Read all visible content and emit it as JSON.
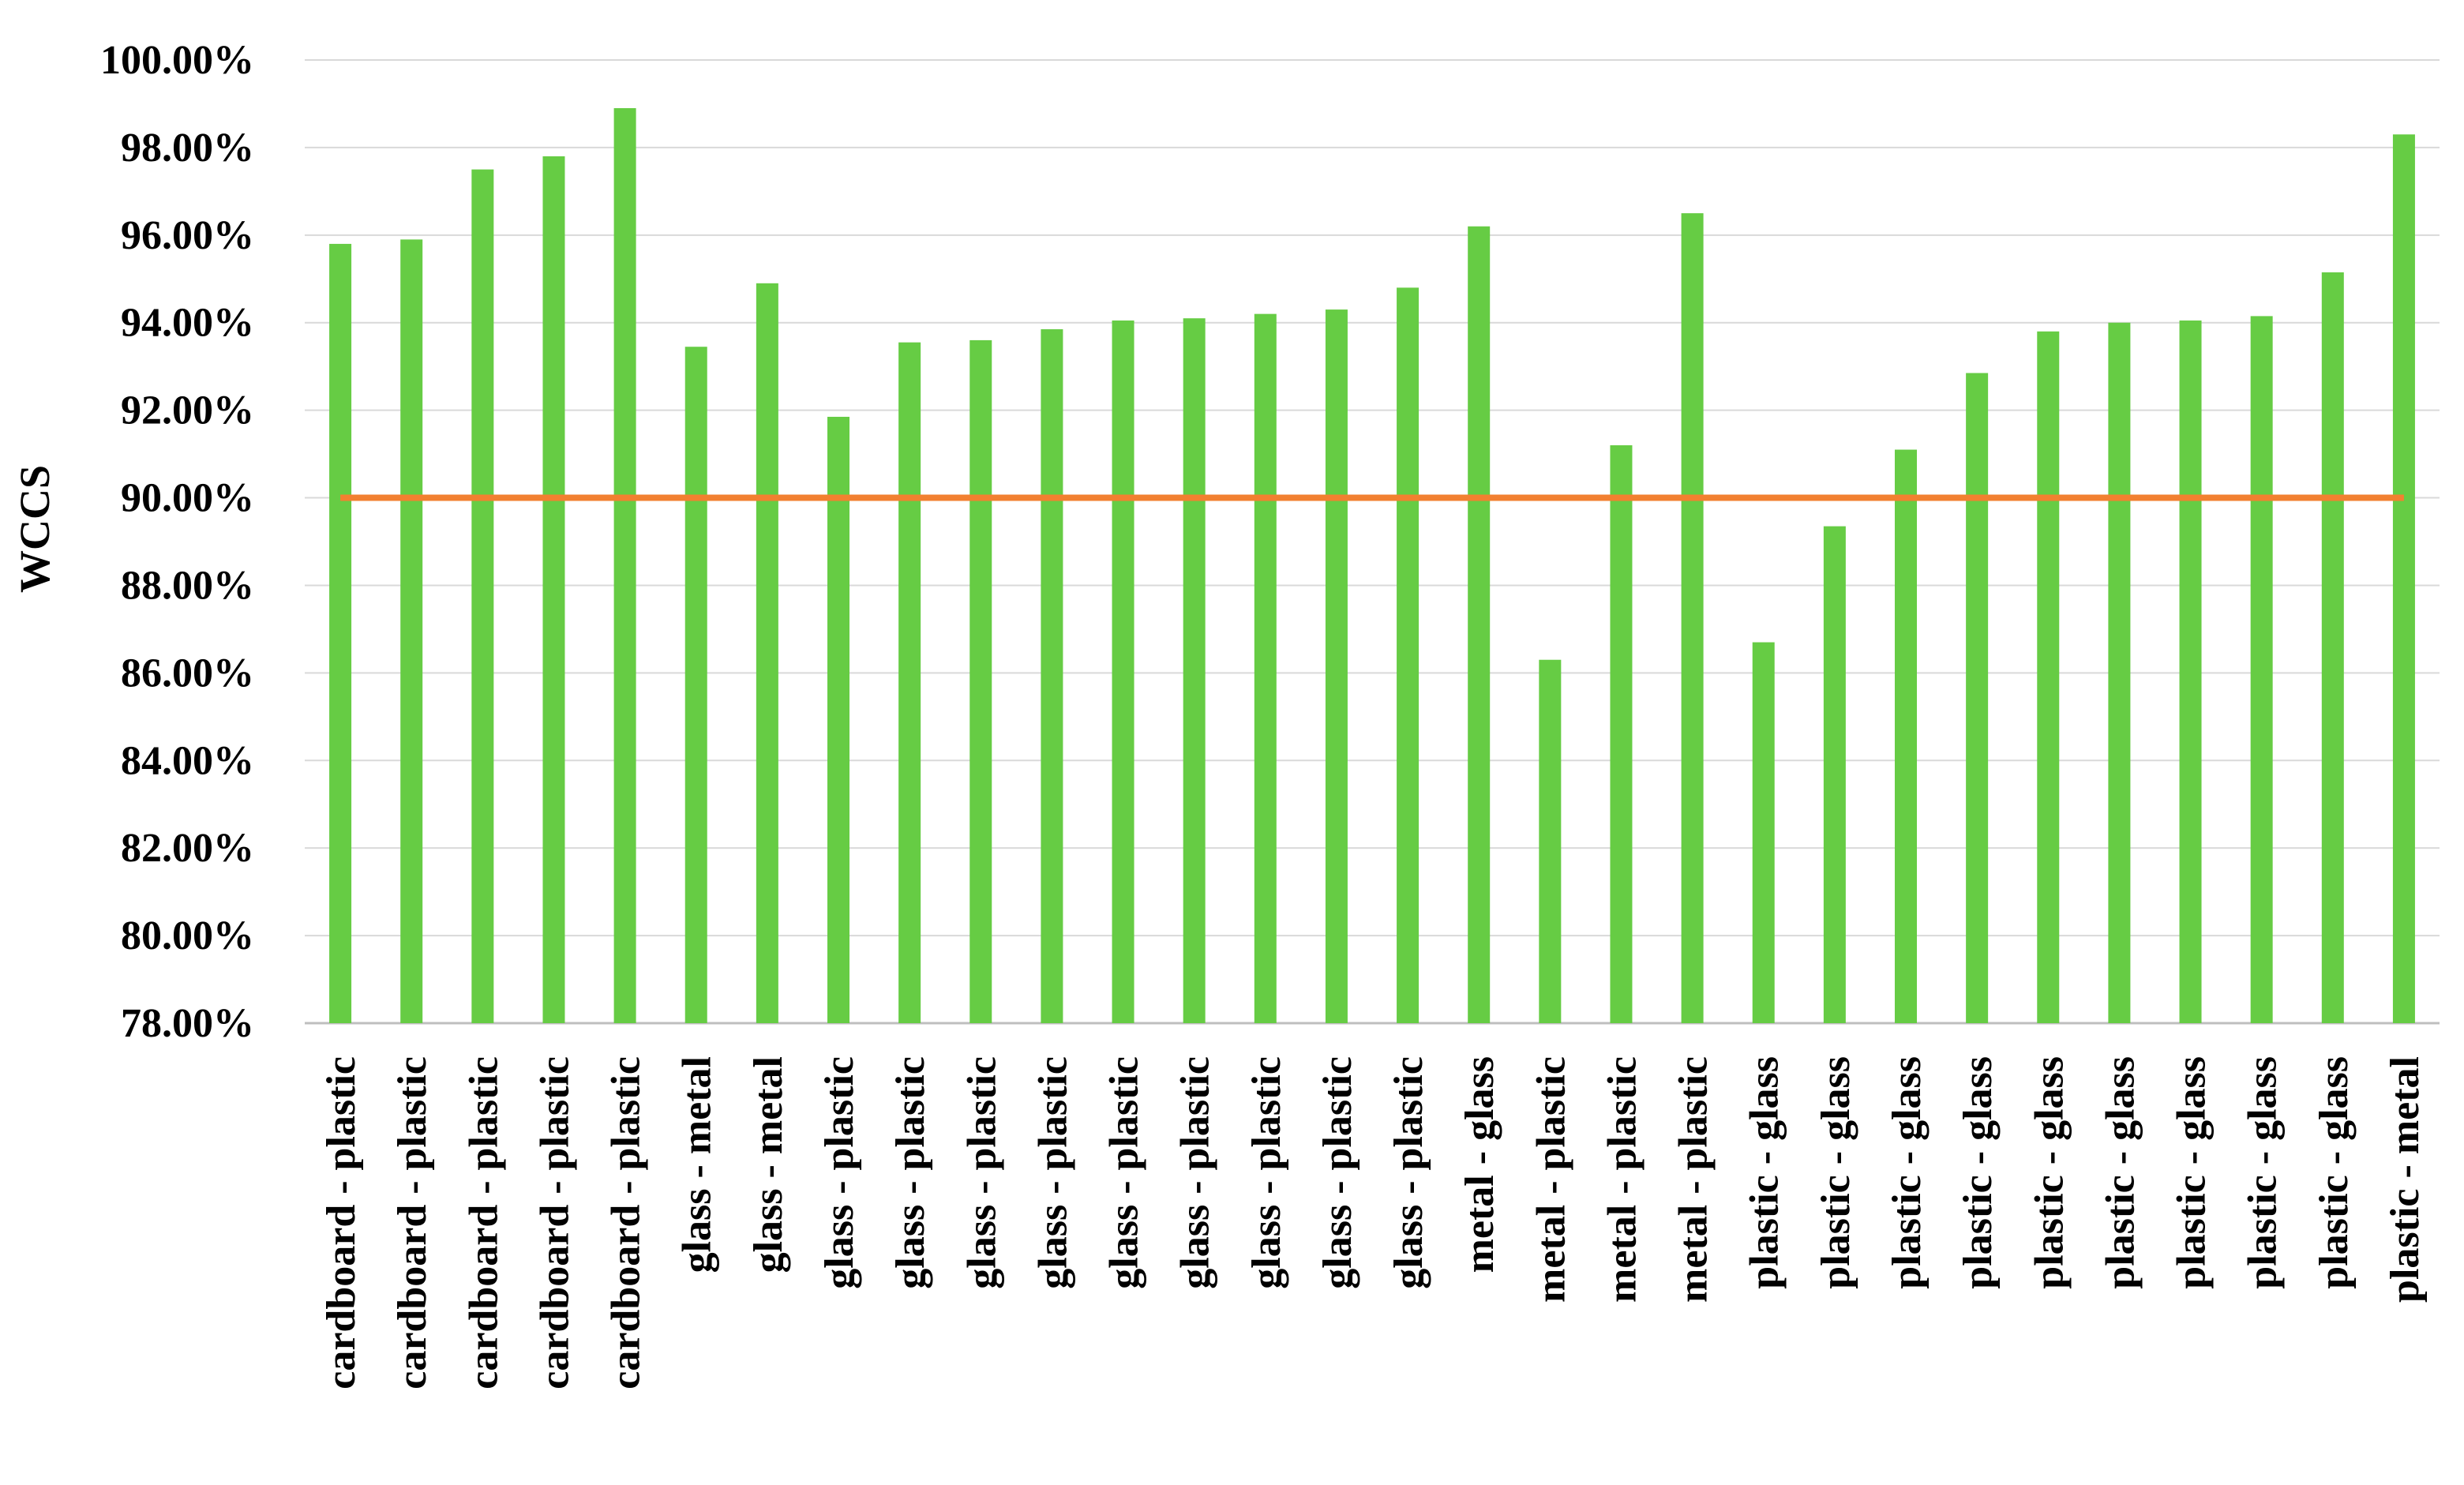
{
  "chart_data": {
    "type": "bar",
    "title": "",
    "xlabel": "",
    "ylabel": "WCCS",
    "ylim": [
      78,
      100
    ],
    "yticks": [
      "78.00%",
      "80.00%",
      "82.00%",
      "84.00%",
      "86.00%",
      "88.00%",
      "90.00%",
      "92.00%",
      "94.00%",
      "96.00%",
      "98.00%",
      "100.00%"
    ],
    "grid": true,
    "legend": "none",
    "categories": [
      "cardboard - plastic",
      "cardboard - plastic",
      "cardboard - plastic",
      "cardboard - plastic",
      "cardboard - plastic",
      "glass - metal",
      "glass - metal",
      "glass - plastic",
      "glass - plastic",
      "glass - plastic",
      "glass - plastic",
      "glass - plastic",
      "glass - plastic",
      "glass - plastic",
      "glass - plastic",
      "glass - plastic",
      "metal - glass",
      "metal - plastic",
      "metal - plastic",
      "metal - plastic",
      "plastic - glass",
      "plastic - glass",
      "plastic - glass",
      "plastic - glass",
      "plastic - glass",
      "plastic - glass",
      "plastic - glass",
      "plastic - glass",
      "plastic - glass",
      "plastic - metal"
    ],
    "series": [
      {
        "color": "#66cc44",
        "values": [
          95.8,
          95.9,
          97.5,
          97.8,
          98.9,
          93.45,
          94.9,
          91.85,
          93.55,
          93.6,
          93.85,
          94.05,
          94.1,
          94.2,
          94.3,
          94.8,
          96.2,
          86.3,
          91.2,
          96.5,
          86.7,
          89.35,
          91.1,
          92.85,
          93.8,
          94.0,
          94.05,
          94.15,
          95.15,
          98.3
        ]
      }
    ],
    "reference_line": {
      "value": 90.0,
      "color": "#f28030"
    },
    "gridline_color": "#d9d9d9",
    "axis_color": "#bfbfbf"
  }
}
